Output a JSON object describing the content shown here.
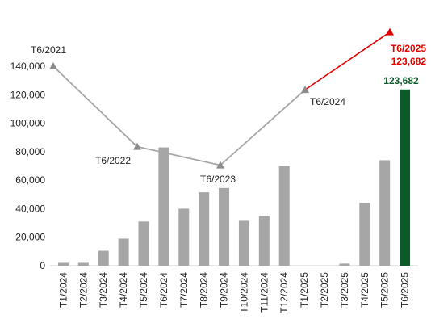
{
  "chart_data": [
    {
      "type": "bar",
      "categories": [
        "T1/2024",
        "T2/2024",
        "T3/2024",
        "T4/2024",
        "T5/2024",
        "T6/2024",
        "T7/2024",
        "T8/2024",
        "T9/2024",
        "T10/2024",
        "T11/2024",
        "T12/2024",
        "T1/2025",
        "T2/2025",
        "T3/2025",
        "T4/2025",
        "T5/2025",
        "T6/2025"
      ],
      "values": [
        2000,
        2000,
        10500,
        19000,
        31000,
        83000,
        40000,
        51500,
        54500,
        31500,
        35000,
        70000,
        0,
        0,
        1500,
        44000,
        74000,
        123682
      ],
      "ylim": [
        0,
        140000
      ],
      "yticks": [
        "0",
        "20,000",
        "40,000",
        "60,000",
        "80,000",
        "100,000",
        "120,000",
        "140,000"
      ],
      "colors": {
        "bar": "#a6a6a6",
        "highlight": "#0b5b2a"
      },
      "data_labels": [
        {
          "category": "T6/2025",
          "text": "123,682"
        }
      ]
    },
    {
      "type": "line",
      "series": [
        {
          "points": [
            {
              "label": "T6/2021",
              "y": 140000
            },
            {
              "label": "T6/2022",
              "y": 83500
            },
            {
              "label": "T6/2023",
              "y": 70500
            },
            {
              "label": "T6/2024",
              "y": 123500
            },
            {
              "label": "T6/2025",
              "y": 164000
            }
          ],
          "colors": {
            "line": "#a6a6a6",
            "last_segment": "#e00000"
          },
          "marker": "triangle"
        }
      ],
      "annotations": [
        {
          "text": "T6/2021"
        },
        {
          "text": "T6/2022"
        },
        {
          "text": "T6/2023"
        },
        {
          "text": "T6/2024"
        },
        {
          "text": "T6/2025"
        },
        {
          "text": "123,682"
        }
      ]
    }
  ]
}
